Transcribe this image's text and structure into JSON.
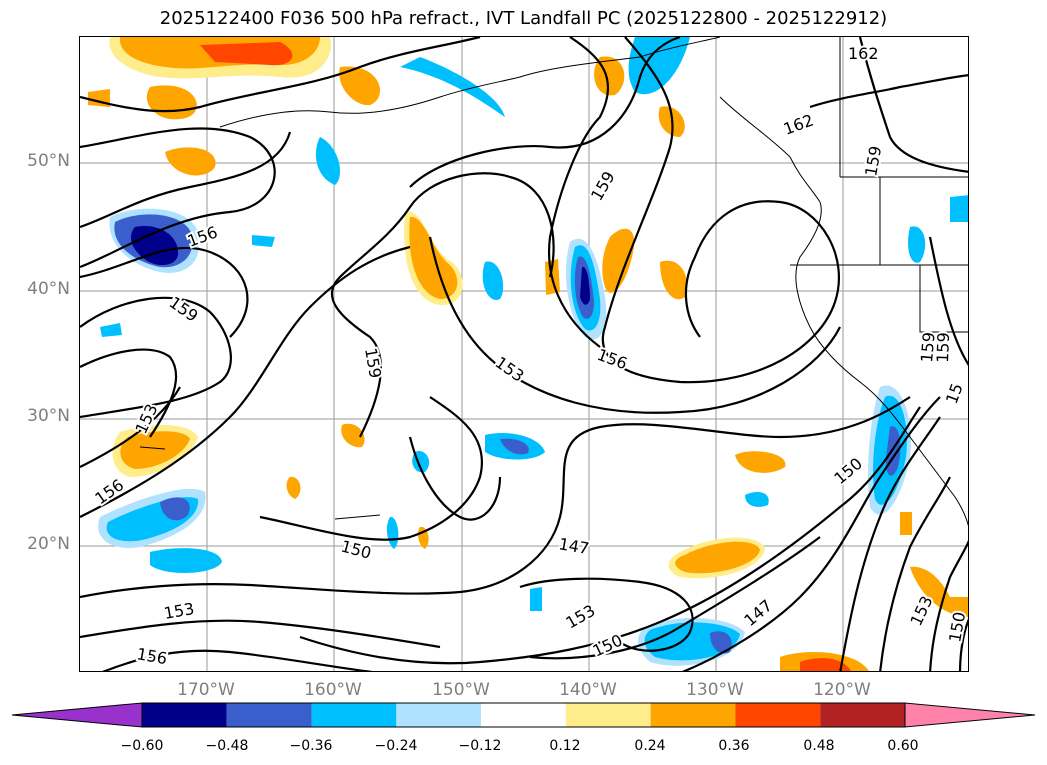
{
  "title": "2025122400 F036 500 hPa refract., IVT Landfall PC (2025122800 - 2025122912)",
  "map": {
    "lat_labels": [
      "50°N",
      "40°N",
      "30°N",
      "20°N"
    ],
    "lon_labels": [
      "170°W",
      "160°W",
      "150°W",
      "140°W",
      "130°W",
      "120°W"
    ],
    "contour_labels": [
      "162",
      "162",
      "159",
      "159",
      "156",
      "159",
      "159",
      "153",
      "156",
      "156",
      "153",
      "159",
      "150",
      "147",
      "150",
      "153",
      "153",
      "150",
      "147",
      "156",
      "153",
      "150",
      "159",
      "15"
    ]
  },
  "colorbar": {
    "ticks": [
      "−0.60",
      "−0.48",
      "−0.36",
      "−0.24",
      "−0.12",
      "0.12",
      "0.24",
      "0.36",
      "0.48",
      "0.60"
    ],
    "colors": [
      "#9932cc",
      "#00008b",
      "#3a5fcd",
      "#00bfff",
      "#b0e2ff",
      "#ffffff",
      "#ffec8b",
      "#ffa500",
      "#ff4500",
      "#b22222",
      "#ff82ab"
    ]
  }
}
